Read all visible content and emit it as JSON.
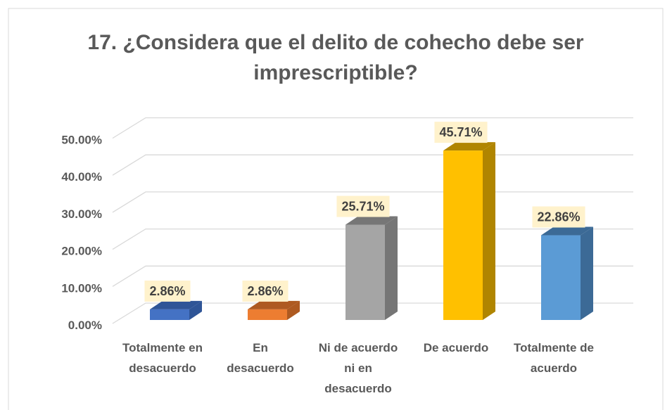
{
  "chart_data": {
    "type": "bar3d",
    "title": "17. ¿Considera que el delito de cohecho debe ser imprescriptible?",
    "categories": [
      "Totalmente en desacuerdo",
      "En desacuerdo",
      "Ni de acuerdo ni en desacuerdo",
      "De acuerdo",
      "Totalmente de acuerdo"
    ],
    "values": [
      2.86,
      2.86,
      25.71,
      45.71,
      22.86
    ],
    "value_labels": [
      "2.86%",
      "2.86%",
      "25.71%",
      "45.71%",
      "22.86%"
    ],
    "colors": [
      "#4472c4",
      "#ed7d31",
      "#a5a5a5",
      "#ffc000",
      "#5b9bd5"
    ],
    "side_colors": [
      "#2f5597",
      "#ae5a21",
      "#767676",
      "#b08500",
      "#3c6a96"
    ],
    "ylim": [
      0,
      50
    ],
    "yticks": [
      {
        "value": 0,
        "label": "0.00%"
      },
      {
        "value": 10,
        "label": "10.00%"
      },
      {
        "value": 20,
        "label": "20.00%"
      },
      {
        "value": 30,
        "label": "30.00%"
      },
      {
        "value": 40,
        "label": "40.00%"
      },
      {
        "value": 50,
        "label": "50.00%"
      }
    ],
    "grid": true
  }
}
